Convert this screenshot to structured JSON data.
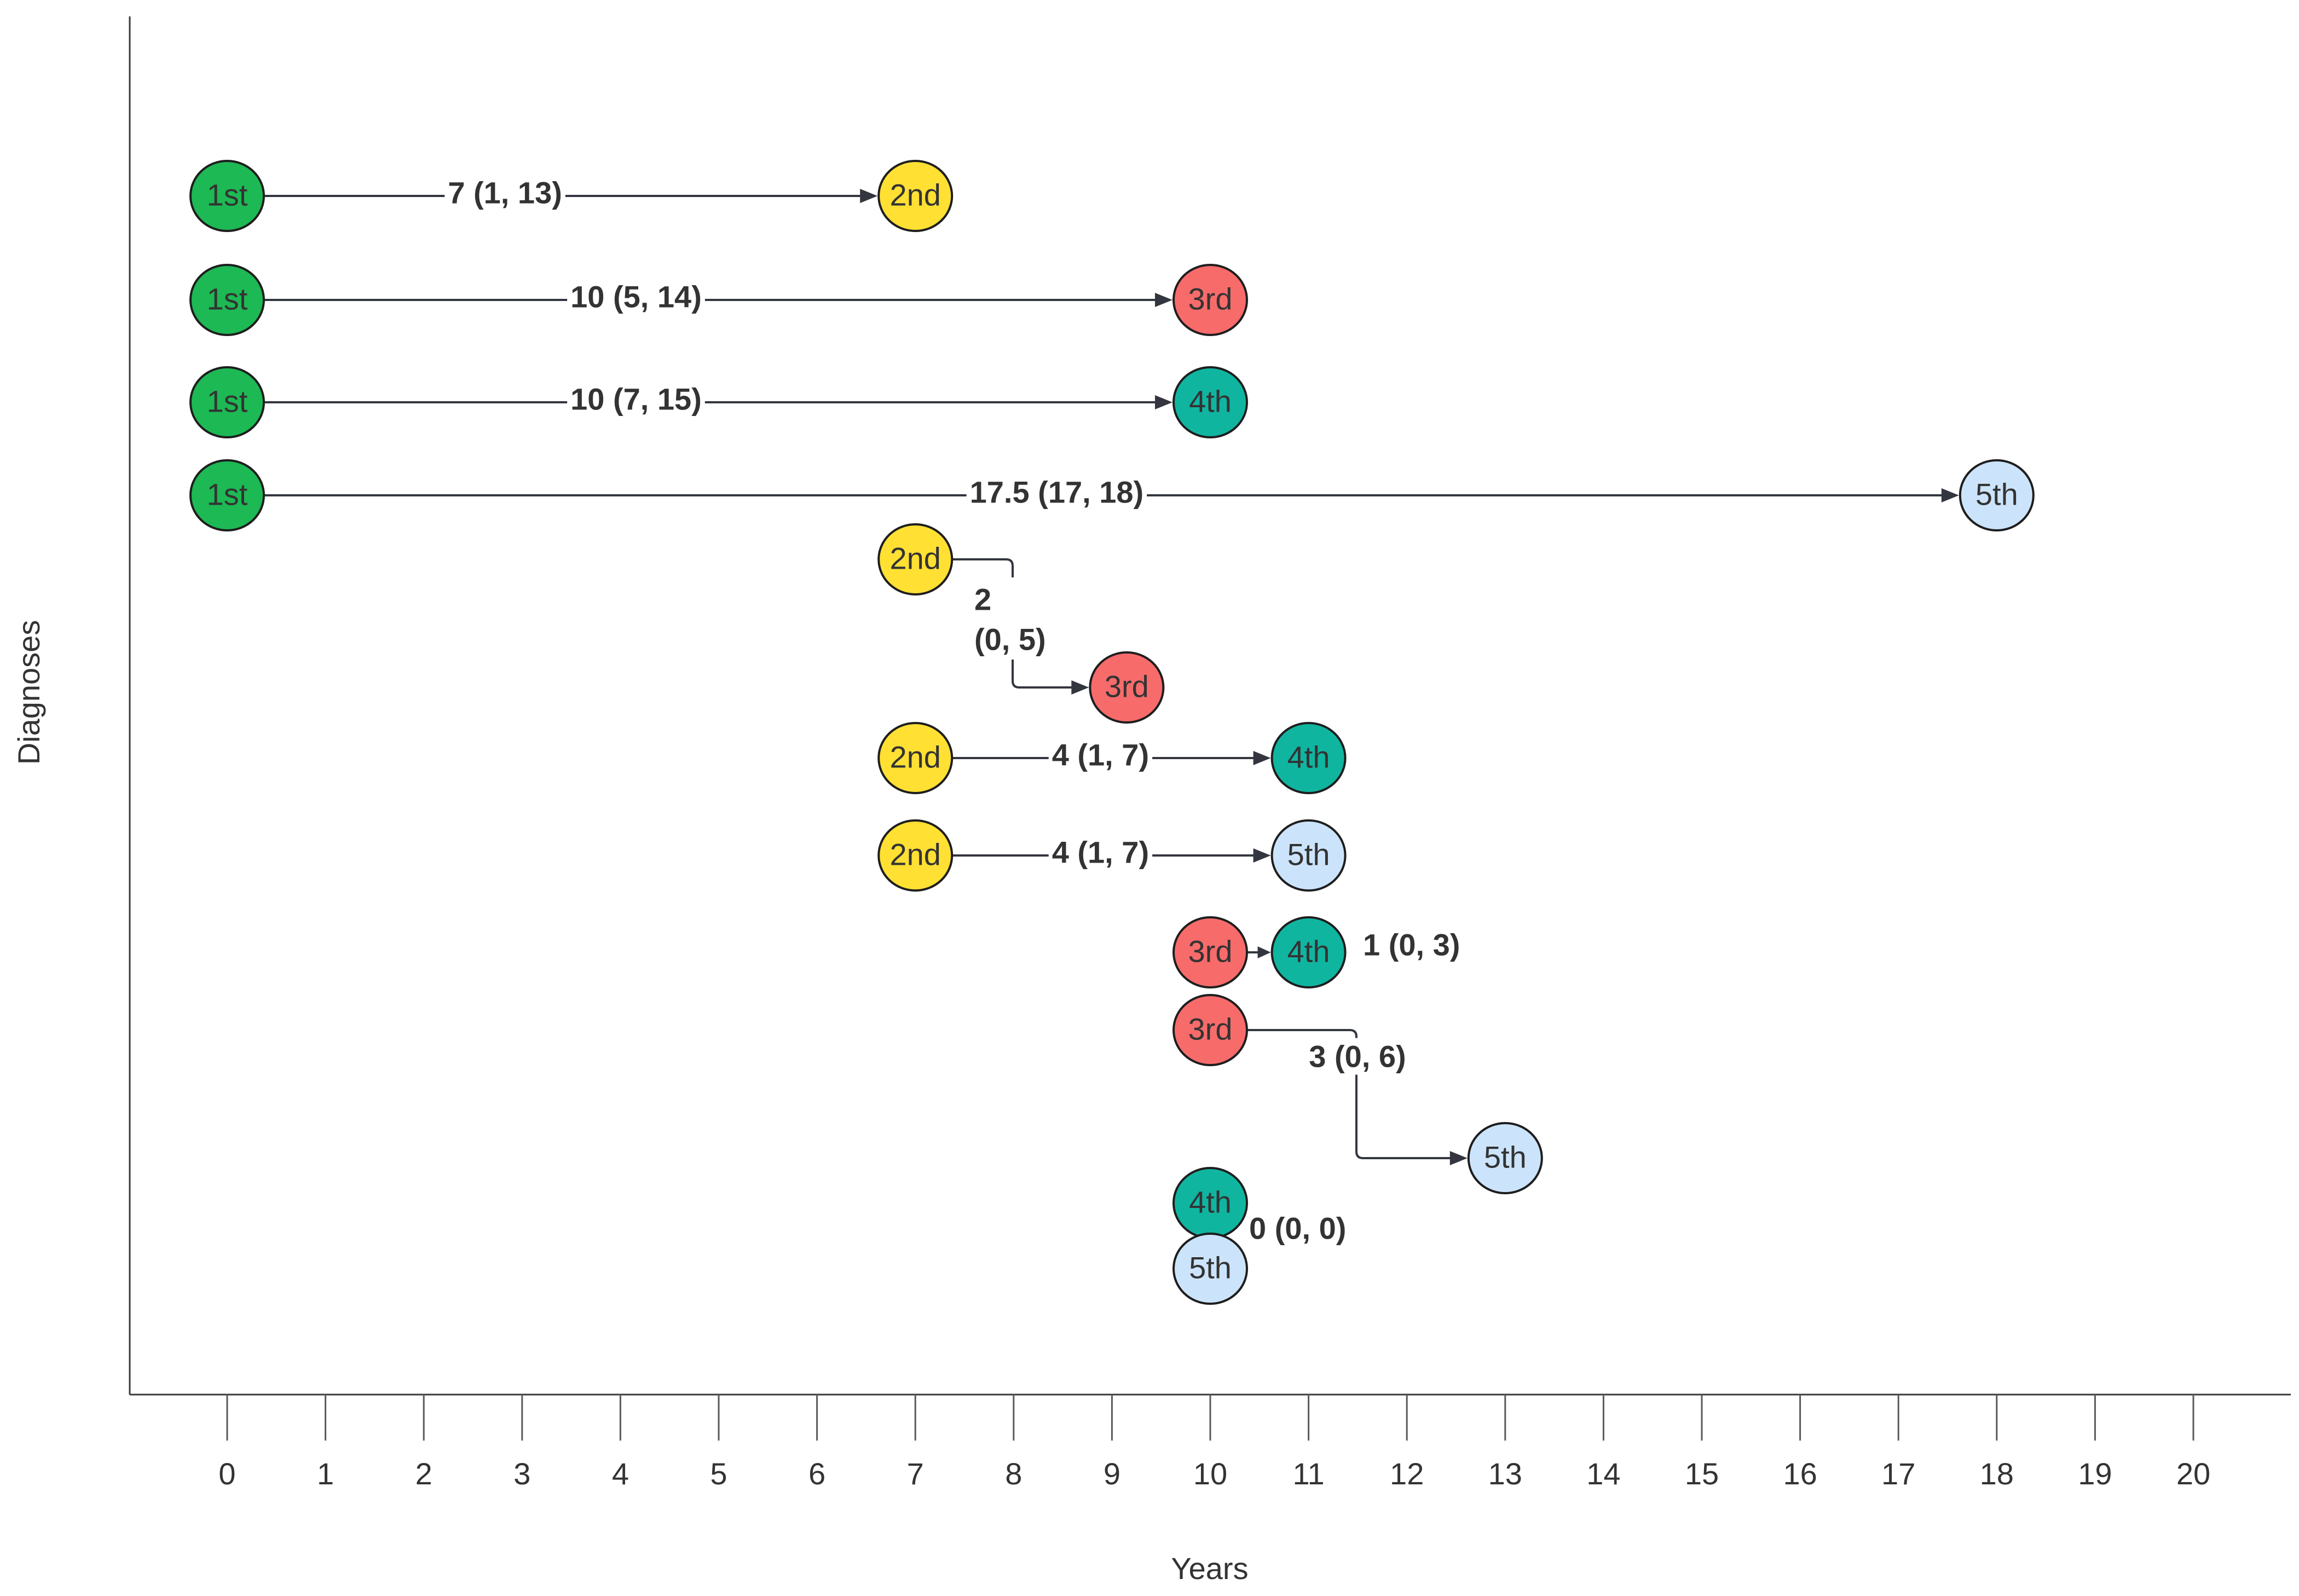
{
  "axes": {
    "x_title": "Years",
    "y_title": "Diagnoses",
    "x_ticks": [
      "0",
      "1",
      "2",
      "3",
      "4",
      "5",
      "6",
      "7",
      "8",
      "9",
      "10",
      "11",
      "12",
      "13",
      "14",
      "15",
      "16",
      "17",
      "18",
      "19",
      "20"
    ]
  },
  "colors": {
    "1st": "#1db954",
    "2nd": "#ffe033",
    "3rd": "#f86b6b",
    "4th": "#10b5a0",
    "5th": "#cce4fb",
    "line": "#33363f"
  },
  "transitions": [
    {
      "from": "1st",
      "to": "2nd",
      "from_year": 0,
      "to_year": 7,
      "label": "7 (1, 13)",
      "style": "straight"
    },
    {
      "from": "1st",
      "to": "3rd",
      "from_year": 0,
      "to_year": 10,
      "label": "10 (5, 14)",
      "style": "straight"
    },
    {
      "from": "1st",
      "to": "4th",
      "from_year": 0,
      "to_year": 10,
      "label": "10 (7, 15)",
      "style": "straight"
    },
    {
      "from": "1st",
      "to": "5th",
      "from_year": 0,
      "to_year": 18,
      "label": "17.5 (17, 18)",
      "style": "straight"
    },
    {
      "from": "2nd",
      "to": "3rd",
      "from_year": 7,
      "to_year": 9,
      "label_line1": "2",
      "label_line2": "(0, 5)",
      "style": "elbow"
    },
    {
      "from": "2nd",
      "to": "4th",
      "from_year": 7,
      "to_year": 11,
      "label": "4 (1, 7)",
      "style": "straight"
    },
    {
      "from": "2nd",
      "to": "5th",
      "from_year": 7,
      "to_year": 11,
      "label": "4 (1, 7)",
      "style": "straight"
    },
    {
      "from": "3rd",
      "to": "4th",
      "from_year": 10,
      "to_year": 11,
      "label": "1 (0, 3)",
      "style": "short"
    },
    {
      "from": "3rd",
      "to": "5th",
      "from_year": 10,
      "to_year": 13,
      "label": "3 (0, 6)",
      "style": "elbow"
    },
    {
      "from": "4th",
      "to": "5th",
      "from_year": 10,
      "to_year": 10,
      "label": "0 (0, 0)",
      "style": "stacked"
    }
  ]
}
